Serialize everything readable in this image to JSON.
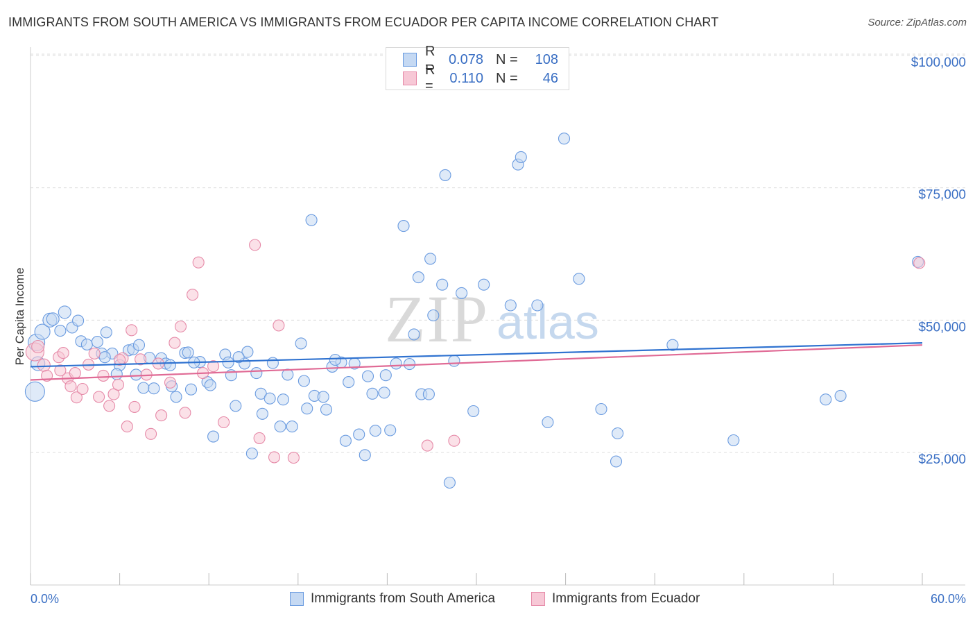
{
  "chart_data": {
    "type": "scatter",
    "title": "IMMIGRANTS FROM SOUTH AMERICA VS IMMIGRANTS FROM ECUADOR PER CAPITA INCOME CORRELATION CHART",
    "source": "Source: ZipAtlas.com",
    "ylabel": "Per Capita Income",
    "xlabel": "",
    "xlim": [
      0,
      60
    ],
    "ylim": [
      0,
      105000
    ],
    "x_tick_labels": {
      "left": "0.0%",
      "right": "60.0%"
    },
    "y_ticks": [
      {
        "value": 25000,
        "label": "$25,000"
      },
      {
        "value": 50000,
        "label": "$50,000"
      },
      {
        "value": 75000,
        "label": "$75,000"
      },
      {
        "value": 100000,
        "label": "$100,000"
      }
    ],
    "watermark": {
      "zip": "ZIP",
      "atlas": "atlas"
    },
    "legend_stats": [
      {
        "r_label": "R =",
        "r_value": "0.078",
        "n_label": "N =",
        "n_value": "108"
      },
      {
        "r_label": "R =",
        "r_value": "0.110",
        "n_label": "N =",
        "n_value": "46"
      }
    ],
    "series": [
      {
        "name": "Immigrants from South America",
        "color": "#6a9be0",
        "fill": "#c5d9f3",
        "trend": {
          "x": [
            0,
            60
          ],
          "y": [
            41200,
            45700
          ]
        },
        "points": [
          [
            0.3,
            36500,
            14
          ],
          [
            0.4,
            45800,
            12
          ],
          [
            0.8,
            47800,
            11
          ],
          [
            0.5,
            41800,
            10
          ],
          [
            1.3,
            50000,
            10
          ],
          [
            1.5,
            50200,
            9
          ],
          [
            2.3,
            51500,
            9
          ],
          [
            2.0,
            48000,
            8
          ],
          [
            2.8,
            48600,
            8
          ],
          [
            3.2,
            49900,
            8
          ],
          [
            3.4,
            46000,
            8
          ],
          [
            3.8,
            45400,
            8
          ],
          [
            4.5,
            45900,
            8
          ],
          [
            5.1,
            47700,
            8
          ],
          [
            4.8,
            43700,
            8
          ],
          [
            5.5,
            43700,
            8
          ],
          [
            6.0,
            41500,
            8
          ],
          [
            5.8,
            39800,
            8
          ],
          [
            6.6,
            44300,
            8
          ],
          [
            6.9,
            44500,
            8
          ],
          [
            7.3,
            45300,
            8
          ],
          [
            7.1,
            39700,
            8
          ],
          [
            7.6,
            37200,
            8
          ],
          [
            8.0,
            42900,
            8
          ],
          [
            8.3,
            37100,
            8
          ],
          [
            8.8,
            42800,
            8
          ],
          [
            9.1,
            41800,
            8
          ],
          [
            9.4,
            41500,
            8
          ],
          [
            9.5,
            37500,
            8
          ],
          [
            9.8,
            35500,
            8
          ],
          [
            10.4,
            43800,
            8
          ],
          [
            10.6,
            43900,
            8
          ],
          [
            10.8,
            36900,
            8
          ],
          [
            11.4,
            42100,
            8
          ],
          [
            11.9,
            38300,
            8
          ],
          [
            12.1,
            37700,
            8
          ],
          [
            12.3,
            28000,
            8
          ],
          [
            13.1,
            43500,
            8
          ],
          [
            13.3,
            42000,
            8
          ],
          [
            13.5,
            39600,
            8
          ],
          [
            13.8,
            33800,
            8
          ],
          [
            14.4,
            41800,
            8
          ],
          [
            14.6,
            44000,
            8
          ],
          [
            14.9,
            24800,
            8
          ],
          [
            15.2,
            40000,
            8
          ],
          [
            15.5,
            36100,
            8
          ],
          [
            15.6,
            32300,
            8
          ],
          [
            16.1,
            35200,
            8
          ],
          [
            16.3,
            41900,
            8
          ],
          [
            16.8,
            29900,
            8
          ],
          [
            17.0,
            35000,
            8
          ],
          [
            17.3,
            39700,
            8
          ],
          [
            17.6,
            29900,
            8
          ],
          [
            18.2,
            45600,
            8
          ],
          [
            18.4,
            38500,
            8
          ],
          [
            18.6,
            33300,
            8
          ],
          [
            18.9,
            68900,
            8
          ],
          [
            19.1,
            35700,
            8
          ],
          [
            19.7,
            35500,
            8
          ],
          [
            19.9,
            33100,
            8
          ],
          [
            20.3,
            41200,
            8
          ],
          [
            20.9,
            42000,
            8
          ],
          [
            21.2,
            27200,
            8
          ],
          [
            21.4,
            38300,
            8
          ],
          [
            21.8,
            41800,
            8
          ],
          [
            22.1,
            28400,
            8
          ],
          [
            22.5,
            24500,
            8
          ],
          [
            22.7,
            39400,
            8
          ],
          [
            23.0,
            36100,
            8
          ],
          [
            23.2,
            29100,
            8
          ],
          [
            23.8,
            36300,
            8
          ],
          [
            23.9,
            39600,
            8
          ],
          [
            24.2,
            29200,
            8
          ],
          [
            24.6,
            41800,
            8
          ],
          [
            25.1,
            67800,
            8
          ],
          [
            25.5,
            41700,
            8
          ],
          [
            25.8,
            47300,
            8
          ],
          [
            26.1,
            58100,
            8
          ],
          [
            26.3,
            36000,
            8
          ],
          [
            26.8,
            36000,
            8
          ],
          [
            26.9,
            61600,
            8
          ],
          [
            27.1,
            50900,
            8
          ],
          [
            27.7,
            56700,
            8
          ],
          [
            27.9,
            77400,
            8
          ],
          [
            28.2,
            19300,
            8
          ],
          [
            28.5,
            42300,
            8
          ],
          [
            29.0,
            55100,
            8
          ],
          [
            29.8,
            32800,
            8
          ],
          [
            30.5,
            56700,
            8
          ],
          [
            32.3,
            52800,
            8
          ],
          [
            32.8,
            79400,
            8
          ],
          [
            33.0,
            80800,
            8
          ],
          [
            34.1,
            52800,
            8
          ],
          [
            34.8,
            30700,
            8
          ],
          [
            35.9,
            84300,
            8
          ],
          [
            36.9,
            57800,
            8
          ],
          [
            38.4,
            33200,
            8
          ],
          [
            39.5,
            28600,
            8
          ],
          [
            39.4,
            23300,
            8
          ],
          [
            43.2,
            45300,
            8
          ],
          [
            47.3,
            27300,
            8
          ],
          [
            53.5,
            35000,
            8
          ],
          [
            54.5,
            35700,
            8
          ],
          [
            59.7,
            61000,
            8
          ],
          [
            5.0,
            43000,
            8
          ],
          [
            11.0,
            42000,
            8
          ],
          [
            14.0,
            43000,
            8
          ],
          [
            20.5,
            42500,
            8
          ]
        ]
      },
      {
        "name": "Immigrants from Ecuador",
        "color": "#e68aa8",
        "fill": "#f7c8d6",
        "trend": {
          "x": [
            0,
            60
          ],
          "y": [
            38700,
            45300
          ]
        },
        "points": [
          [
            0.3,
            44000,
            13
          ],
          [
            0.5,
            45000,
            9
          ],
          [
            0.9,
            41500,
            9
          ],
          [
            1.1,
            39500,
            8
          ],
          [
            1.9,
            43000,
            8
          ],
          [
            2.2,
            43800,
            8
          ],
          [
            2.5,
            39000,
            8
          ],
          [
            2.7,
            37500,
            8
          ],
          [
            3.1,
            35400,
            8
          ],
          [
            3.5,
            37000,
            8
          ],
          [
            3.9,
            41600,
            8
          ],
          [
            4.3,
            43700,
            8
          ],
          [
            4.6,
            35500,
            8
          ],
          [
            4.9,
            39500,
            8
          ],
          [
            5.3,
            33800,
            8
          ],
          [
            5.6,
            36000,
            8
          ],
          [
            5.9,
            37800,
            8
          ],
          [
            6.2,
            42800,
            8
          ],
          [
            6.5,
            29900,
            8
          ],
          [
            6.8,
            48100,
            8
          ],
          [
            7.0,
            33600,
            8
          ],
          [
            7.4,
            42600,
            8
          ],
          [
            7.8,
            39700,
            8
          ],
          [
            8.1,
            28500,
            8
          ],
          [
            8.6,
            41800,
            8
          ],
          [
            8.8,
            32000,
            8
          ],
          [
            9.4,
            38200,
            8
          ],
          [
            9.7,
            45700,
            8
          ],
          [
            10.1,
            48800,
            8
          ],
          [
            10.4,
            32500,
            8
          ],
          [
            10.9,
            54800,
            8
          ],
          [
            11.3,
            60900,
            8
          ],
          [
            11.6,
            40000,
            8
          ],
          [
            12.3,
            41300,
            8
          ],
          [
            13.0,
            30700,
            8
          ],
          [
            15.1,
            64200,
            8
          ],
          [
            15.4,
            27700,
            8
          ],
          [
            16.4,
            24100,
            8
          ],
          [
            16.7,
            49000,
            8
          ],
          [
            17.7,
            24000,
            8
          ],
          [
            26.7,
            26300,
            8
          ],
          [
            28.5,
            27200,
            8
          ],
          [
            59.8,
            60800,
            8
          ],
          [
            2.0,
            40500,
            8
          ],
          [
            6.0,
            42500,
            8
          ],
          [
            3.0,
            40000,
            8
          ]
        ]
      }
    ]
  }
}
